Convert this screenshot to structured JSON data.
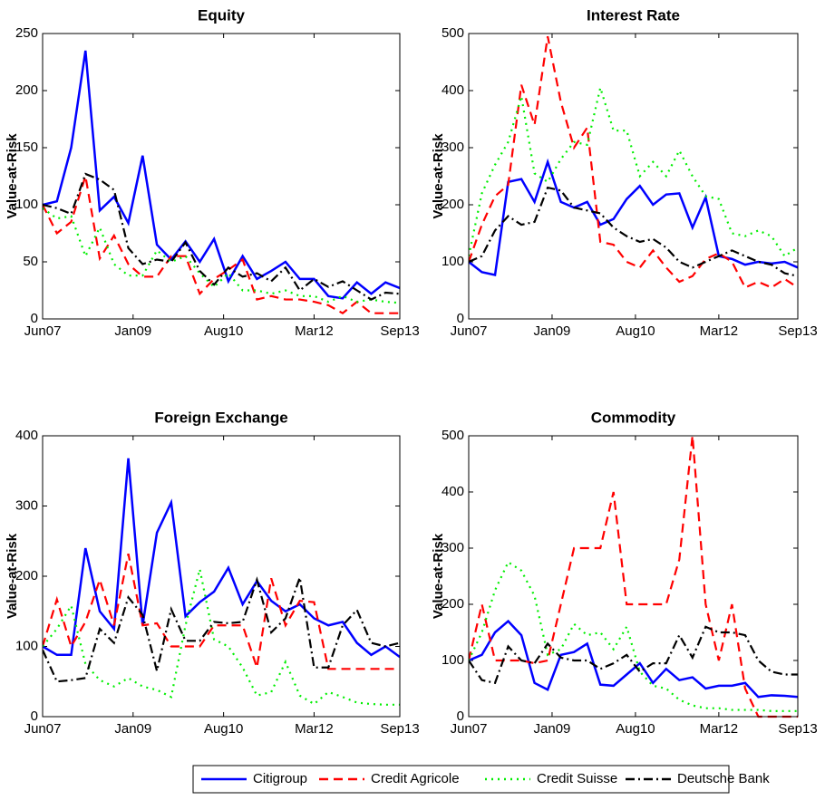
{
  "chart_data": [
    {
      "type": "line",
      "title": "Equity",
      "ylabel": "Value-at-Risk",
      "x": [
        "2007-06",
        "2007-09",
        "2007-12",
        "2008-03",
        "2008-06",
        "2008-09",
        "2008-12",
        "2009-03",
        "2009-06",
        "2009-09",
        "2009-12",
        "2010-03",
        "2010-06",
        "2010-09",
        "2010-12",
        "2011-03",
        "2011-06",
        "2011-09",
        "2011-12",
        "2012-03",
        "2012-06",
        "2012-09",
        "2012-12",
        "2013-03",
        "2013-06",
        "2013-09"
      ],
      "xlim": [
        "2007-06",
        "2013-09"
      ],
      "xticks": [
        {
          "value": "2007-06",
          "label": "Jun07"
        },
        {
          "value": "2009-01",
          "label": "Jan09"
        },
        {
          "value": "2010-08",
          "label": "Aug10"
        },
        {
          "value": "2012-03",
          "label": "Mar12"
        },
        {
          "value": "2013-09",
          "label": "Sep13"
        }
      ],
      "ylim": [
        0,
        250
      ],
      "yticks": [
        0,
        50,
        100,
        150,
        200,
        250
      ],
      "series": [
        {
          "name": "Citigroup",
          "color": "#0000ff",
          "style": "solid",
          "values": [
            100,
            103,
            150,
            235,
            95,
            107,
            84,
            143,
            65,
            52,
            68,
            50,
            70,
            33,
            55,
            35,
            42,
            50,
            35,
            35,
            20,
            18,
            32,
            22,
            32,
            27
          ]
        },
        {
          "name": "Credit Agricole",
          "color": "#ff0000",
          "style": "dashed",
          "values": [
            100,
            75,
            85,
            125,
            53,
            73,
            48,
            37,
            37,
            55,
            55,
            22,
            35,
            43,
            52,
            17,
            20,
            17,
            17,
            15,
            12,
            5,
            15,
            5,
            5,
            5
          ]
        },
        {
          "name": "Credit Suisse",
          "color": "#00ee00",
          "style": "dotted",
          "values": [
            97,
            88,
            90,
            55,
            80,
            48,
            38,
            38,
            60,
            50,
            55,
            40,
            28,
            40,
            25,
            25,
            22,
            25,
            20,
            20,
            15,
            20,
            15,
            17,
            15,
            14
          ]
        },
        {
          "name": "Deutsche Bank",
          "color": "#000000",
          "style": "dashdot",
          "values": [
            100,
            97,
            92,
            127,
            122,
            113,
            62,
            48,
            52,
            50,
            67,
            42,
            30,
            45,
            37,
            40,
            33,
            45,
            25,
            35,
            28,
            33,
            25,
            17,
            23,
            22
          ]
        }
      ]
    },
    {
      "type": "line",
      "title": "Interest Rate",
      "ylabel": "Value-at-Risk",
      "x": [
        "2007-06",
        "2007-09",
        "2007-12",
        "2008-03",
        "2008-06",
        "2008-09",
        "2008-12",
        "2009-03",
        "2009-06",
        "2009-09",
        "2009-12",
        "2010-03",
        "2010-06",
        "2010-09",
        "2010-12",
        "2011-03",
        "2011-06",
        "2011-09",
        "2011-12",
        "2012-03",
        "2012-06",
        "2012-09",
        "2012-12",
        "2013-03",
        "2013-06",
        "2013-09"
      ],
      "xlim": [
        "2007-06",
        "2013-09"
      ],
      "xticks": [
        {
          "value": "2007-06",
          "label": "Jun07"
        },
        {
          "value": "2009-01",
          "label": "Jan09"
        },
        {
          "value": "2010-08",
          "label": "Aug10"
        },
        {
          "value": "2012-03",
          "label": "Mar12"
        },
        {
          "value": "2013-09",
          "label": "Sep13"
        }
      ],
      "ylim": [
        0,
        500
      ],
      "yticks": [
        0,
        100,
        200,
        300,
        400,
        500
      ],
      "series": [
        {
          "color": "#0000ff",
          "style": "solid",
          "values": [
            100,
            82,
            77,
            240,
            245,
            205,
            275,
            205,
            195,
            205,
            165,
            175,
            210,
            233,
            200,
            218,
            220,
            160,
            213,
            110,
            105,
            95,
            100,
            97,
            100,
            90
          ]
        },
        {
          "color": "#ff0000",
          "style": "dashed",
          "values": [
            100,
            165,
            215,
            235,
            410,
            340,
            495,
            380,
            300,
            335,
            135,
            130,
            100,
            90,
            120,
            90,
            65,
            75,
            105,
            115,
            100,
            55,
            65,
            55,
            70,
            55
          ]
        },
        {
          "color": "#00ee00",
          "style": "dotted",
          "values": [
            110,
            220,
            270,
            310,
            390,
            255,
            240,
            280,
            310,
            305,
            405,
            330,
            330,
            250,
            275,
            250,
            295,
            250,
            215,
            210,
            150,
            145,
            155,
            145,
            110,
            125
          ]
        },
        {
          "color": "#000000",
          "style": "dashdot",
          "values": [
            100,
            110,
            155,
            180,
            165,
            170,
            230,
            225,
            195,
            190,
            185,
            160,
            145,
            135,
            140,
            125,
            100,
            90,
            100,
            110,
            120,
            110,
            100,
            95,
            80,
            75
          ]
        }
      ]
    },
    {
      "type": "line",
      "title": "Foreign Exchange",
      "ylabel": "Value-at-Risk",
      "x": [
        "2007-06",
        "2007-09",
        "2007-12",
        "2008-03",
        "2008-06",
        "2008-09",
        "2008-12",
        "2009-03",
        "2009-06",
        "2009-09",
        "2009-12",
        "2010-03",
        "2010-06",
        "2010-09",
        "2010-12",
        "2011-03",
        "2011-06",
        "2011-09",
        "2011-12",
        "2012-03",
        "2012-06",
        "2012-09",
        "2012-12",
        "2013-03",
        "2013-06",
        "2013-09"
      ],
      "xlim": [
        "2007-06",
        "2013-09"
      ],
      "xticks": [
        {
          "value": "2007-06",
          "label": "Jun07"
        },
        {
          "value": "2009-01",
          "label": "Jan09"
        },
        {
          "value": "2010-08",
          "label": "Aug10"
        },
        {
          "value": "2012-03",
          "label": "Mar12"
        },
        {
          "value": "2013-09",
          "label": "Sep13"
        }
      ],
      "ylim": [
        0,
        400
      ],
      "yticks": [
        0,
        100,
        200,
        300,
        400
      ],
      "series": [
        {
          "color": "#0000ff",
          "style": "solid",
          "values": [
            100,
            88,
            88,
            240,
            150,
            125,
            368,
            130,
            262,
            305,
            143,
            163,
            178,
            212,
            160,
            193,
            165,
            150,
            160,
            140,
            130,
            135,
            105,
            88,
            100,
            85
          ]
        },
        {
          "color": "#ff0000",
          "style": "dashed",
          "values": [
            100,
            167,
            100,
            135,
            195,
            130,
            232,
            130,
            133,
            100,
            100,
            100,
            130,
            130,
            130,
            70,
            197,
            130,
            165,
            163,
            68,
            68,
            68,
            68,
            68,
            68
          ]
        },
        {
          "color": "#00ee00",
          "style": "dotted",
          "values": [
            100,
            125,
            158,
            75,
            52,
            43,
            55,
            43,
            38,
            28,
            130,
            210,
            110,
            100,
            70,
            30,
            35,
            78,
            30,
            18,
            35,
            28,
            20,
            18,
            17,
            17
          ]
        },
        {
          "color": "#000000",
          "style": "dashdot",
          "values": [
            95,
            50,
            52,
            55,
            125,
            105,
            170,
            145,
            65,
            153,
            108,
            108,
            135,
            133,
            135,
            195,
            120,
            140,
            198,
            70,
            70,
            130,
            152,
            105,
            100,
            105
          ]
        }
      ]
    },
    {
      "type": "line",
      "title": "Commodity",
      "ylabel": "Value-at-Risk",
      "x": [
        "2007-06",
        "2007-09",
        "2007-12",
        "2008-03",
        "2008-06",
        "2008-09",
        "2008-12",
        "2009-03",
        "2009-06",
        "2009-09",
        "2009-12",
        "2010-03",
        "2010-06",
        "2010-09",
        "2010-12",
        "2011-03",
        "2011-06",
        "2011-09",
        "2011-12",
        "2012-03",
        "2012-06",
        "2012-09",
        "2012-12",
        "2013-03",
        "2013-06",
        "2013-09"
      ],
      "xlim": [
        "2007-06",
        "2013-09"
      ],
      "xticks": [
        {
          "value": "2007-06",
          "label": "Jun07"
        },
        {
          "value": "2009-01",
          "label": "Jan09"
        },
        {
          "value": "2010-08",
          "label": "Aug10"
        },
        {
          "value": "2012-03",
          "label": "Mar12"
        },
        {
          "value": "2013-09",
          "label": "Sep13"
        }
      ],
      "ylim": [
        0,
        500
      ],
      "yticks": [
        0,
        100,
        200,
        300,
        400,
        500
      ],
      "series": [
        {
          "color": "#0000ff",
          "style": "solid",
          "values": [
            100,
            110,
            150,
            170,
            145,
            60,
            48,
            110,
            115,
            130,
            57,
            55,
            75,
            95,
            60,
            85,
            65,
            70,
            50,
            55,
            55,
            60,
            35,
            38,
            37,
            35
          ]
        },
        {
          "color": "#ff0000",
          "style": "dashed",
          "values": [
            100,
            200,
            100,
            100,
            100,
            95,
            100,
            200,
            300,
            300,
            300,
            400,
            200,
            200,
            200,
            200,
            280,
            500,
            200,
            100,
            200,
            50,
            0,
            0,
            0,
            0
          ]
        },
        {
          "color": "#00ee00",
          "style": "dotted",
          "values": [
            100,
            150,
            225,
            275,
            260,
            215,
            110,
            120,
            165,
            145,
            150,
            120,
            160,
            80,
            55,
            50,
            30,
            20,
            15,
            15,
            12,
            12,
            12,
            10,
            10,
            10
          ]
        },
        {
          "color": "#000000",
          "style": "dashdot",
          "values": [
            100,
            65,
            60,
            125,
            100,
            95,
            130,
            105,
            100,
            100,
            85,
            95,
            110,
            80,
            95,
            95,
            145,
            105,
            160,
            150,
            150,
            145,
            100,
            80,
            75,
            75
          ]
        }
      ]
    }
  ]
}
